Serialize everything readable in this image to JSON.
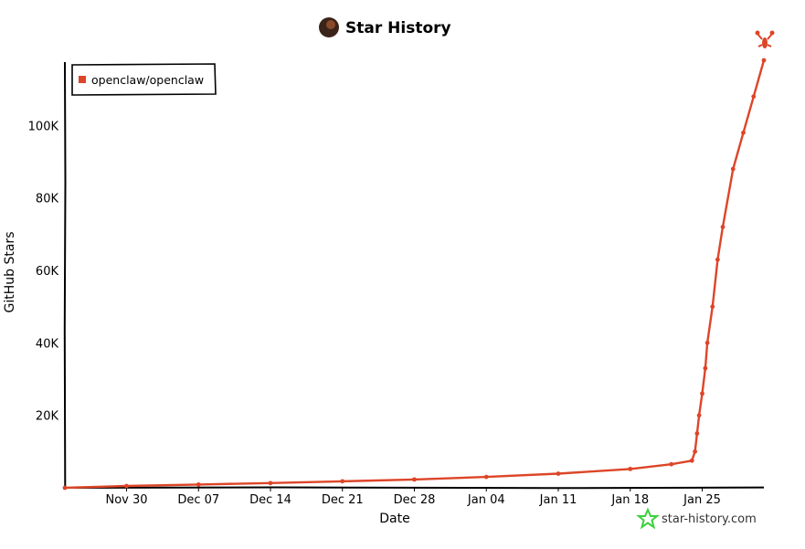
{
  "chart_data": {
    "type": "line",
    "title": "Star History",
    "xlabel": "Date",
    "ylabel": "GitHub Stars",
    "x_ticks": [
      "Nov 30",
      "Dec 07",
      "Dec 14",
      "Dec 21",
      "Dec 28",
      "Jan 04",
      "Jan 11",
      "Jan 18",
      "Jan 25"
    ],
    "y_ticks": [
      "20K",
      "40K",
      "60K",
      "80K",
      "100K"
    ],
    "y_tick_values": [
      20000,
      40000,
      60000,
      80000,
      100000
    ],
    "xlim": [
      "2025-11-24",
      "2026-01-31"
    ],
    "ylim": [
      0,
      118000
    ],
    "grid": false,
    "legend_position": "top-left",
    "series": [
      {
        "name": "openclaw/openclaw",
        "color": "#dd4528",
        "points": [
          {
            "date": "2025-11-24",
            "value": 0
          },
          {
            "date": "2025-11-30",
            "value": 500
          },
          {
            "date": "2025-12-07",
            "value": 900
          },
          {
            "date": "2025-12-14",
            "value": 1300
          },
          {
            "date": "2025-12-21",
            "value": 1800
          },
          {
            "date": "2025-12-28",
            "value": 2300
          },
          {
            "date": "2026-01-04",
            "value": 3000
          },
          {
            "date": "2026-01-11",
            "value": 3900
          },
          {
            "date": "2026-01-18",
            "value": 5200
          },
          {
            "date": "2026-01-22",
            "value": 6500
          },
          {
            "date": "2026-01-24",
            "value": 7500
          },
          {
            "date": "2026-01-24.3",
            "value": 10000
          },
          {
            "date": "2026-01-24.5",
            "value": 15000
          },
          {
            "date": "2026-01-24.7",
            "value": 20000
          },
          {
            "date": "2026-01-25",
            "value": 26000
          },
          {
            "date": "2026-01-25.3",
            "value": 33000
          },
          {
            "date": "2026-01-25.5",
            "value": 40000
          },
          {
            "date": "2026-01-26",
            "value": 50000
          },
          {
            "date": "2026-01-26.5",
            "value": 63000
          },
          {
            "date": "2026-01-27",
            "value": 72000
          },
          {
            "date": "2026-01-28",
            "value": 88000
          },
          {
            "date": "2026-01-29",
            "value": 98000
          },
          {
            "date": "2026-01-30",
            "value": 108000
          },
          {
            "date": "2026-01-31",
            "value": 118000
          }
        ]
      }
    ]
  },
  "footer": {
    "site": "star-history.com"
  },
  "colors": {
    "series": "#dd4528",
    "logo": "#3bd13b",
    "axis": "#000000"
  }
}
